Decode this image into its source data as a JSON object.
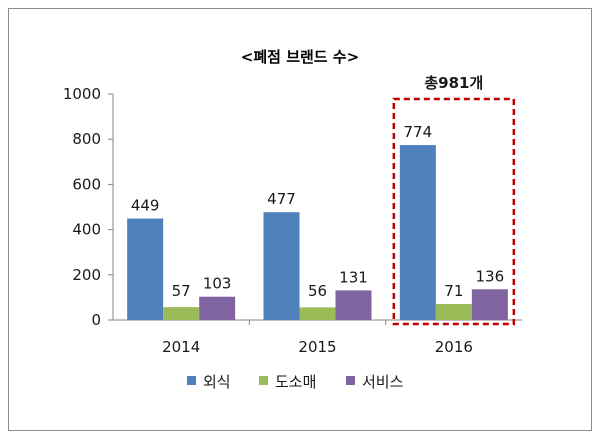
{
  "chart_data": {
    "type": "bar",
    "title": "<폐점 브랜드 수>",
    "categories": [
      "2014",
      "2015",
      "2016"
    ],
    "series": [
      {
        "name": "외식",
        "color": "#4F81BD",
        "values": [
          449,
          477,
          774
        ]
      },
      {
        "name": "도소매",
        "color": "#9BBB59",
        "values": [
          57,
          56,
          71
        ]
      },
      {
        "name": "서비스",
        "color": "#8064A2",
        "values": [
          103,
          131,
          136
        ]
      }
    ],
    "yticks": [
      "0",
      "200",
      "400",
      "600",
      "800",
      "1000"
    ],
    "ylim": [
      0,
      1000
    ],
    "grid": false,
    "legend_position": "bottom",
    "highlight": {
      "category": "2016",
      "label": "총981개",
      "color": "#C00000",
      "style": "dashed"
    }
  }
}
